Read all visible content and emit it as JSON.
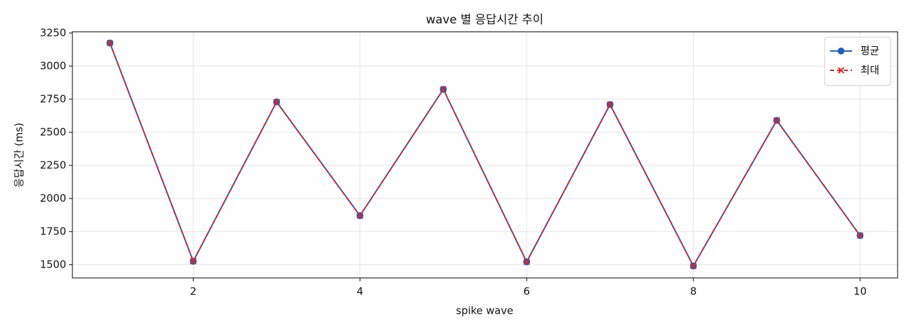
{
  "chart_data": {
    "type": "line",
    "title": "wave 별 응답시간 추이",
    "x_label": "spike wave",
    "y_label": "응답시간 (ms)",
    "x": [
      1,
      2,
      3,
      4,
      5,
      6,
      7,
      8,
      9,
      10
    ],
    "series": [
      {
        "name": "평균",
        "color": "#1f5fbf",
        "marker": "o",
        "dashed": false,
        "values": [
          3175,
          1526,
          2730,
          1870,
          2825,
          1521,
          2710,
          1490,
          2590,
          1720
        ]
      },
      {
        "name": "최대",
        "color": "#d62728",
        "marker": "x",
        "dashed": true,
        "values": [
          3175,
          1526,
          2730,
          1870,
          2825,
          1521,
          2710,
          1490,
          2590,
          1720
        ]
      }
    ],
    "xlim": [
      0.55,
      10.45
    ],
    "ylim": [
      1400,
      3260
    ],
    "xticks": [
      2,
      4,
      6,
      8,
      10
    ],
    "yticks": [
      1500,
      1750,
      2000,
      2250,
      2500,
      2750,
      3000,
      3250
    ],
    "grid": true,
    "legend": "upper right"
  }
}
